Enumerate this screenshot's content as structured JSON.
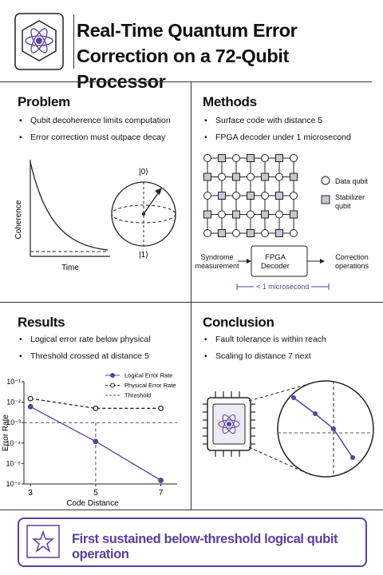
{
  "header": {
    "title": "Real-Time Quantum Error Correction on a 72-Qubit Processor"
  },
  "problem": {
    "heading": "Problem",
    "bullets": [
      "Qubit decoherence limits computation",
      "Error correction must outpace decay"
    ],
    "plot": {
      "ylabel": "Coherence",
      "xlabel": "Time"
    },
    "bloch": {
      "top": "|0⟩",
      "bottom": "|1⟩"
    }
  },
  "methods": {
    "heading": "Methods",
    "bullets": [
      "Surface code with distance 5",
      "FPGA decoder under 1 microsecond"
    ],
    "legend": [
      "Data qubit",
      "Stabilizer qubit"
    ],
    "flow": [
      "Syndrome measurement",
      "FPGA Decoder",
      "Correction operations"
    ],
    "latency": "< 1 microsecond"
  },
  "results": {
    "heading": "Results",
    "bullets": [
      "Logical error rate below physical",
      "Threshold crossed at distance 5"
    ]
  },
  "chart_data": {
    "type": "line",
    "xlabel": "Code Distance",
    "ylabel": "Error Rate",
    "x": [
      3,
      5,
      7
    ],
    "xlim": [
      2.8,
      7.5
    ],
    "xticks": [
      3,
      5,
      7
    ],
    "ylim": [
      1e-06,
      0.1
    ],
    "yscale": "log",
    "yticks": [
      {
        "value": 0.1,
        "label": "10⁻¹"
      },
      {
        "value": 0.01,
        "label": "10⁻²"
      },
      {
        "value": 0.001,
        "label": "10⁻³"
      },
      {
        "value": 0.0001,
        "label": "10⁻⁴"
      },
      {
        "value": 1e-05,
        "label": "10⁻⁵"
      },
      {
        "value": 1e-06,
        "label": "10⁻⁶"
      }
    ],
    "series": [
      {
        "name": "Logical Error Rate",
        "color": "#5b3f9e",
        "values": [
          0.006,
          0.00012,
          1.5e-06
        ],
        "marker": "filled",
        "linestyle": "solid"
      },
      {
        "name": "Physical Error Rate",
        "color": "#222222",
        "values": [
          0.015,
          0.005,
          0.005
        ],
        "marker": "open",
        "linestyle": "dashed"
      }
    ],
    "threshold": {
      "name": "Threshold",
      "value": 0.001,
      "color": "#5b3f9e"
    },
    "legend": "upper right"
  },
  "conclusion": {
    "heading": "Conclusion",
    "bullets": [
      "Fault tolerance is within reach",
      "Scaling to distance 7 next"
    ]
  },
  "banner": {
    "text": "First sustained below-threshold logical qubit operation"
  }
}
